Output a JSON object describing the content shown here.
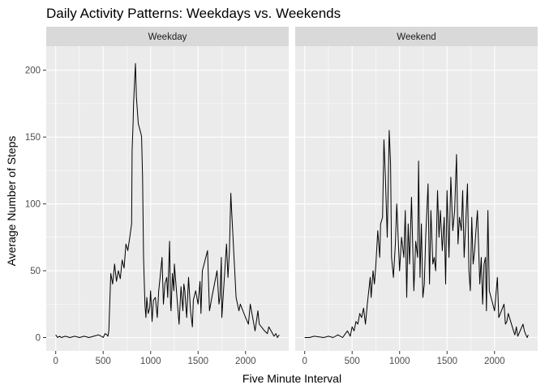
{
  "chart_data": {
    "type": "line",
    "title": "Daily Activity Patterns: Weekdays vs. Weekends",
    "xlabel": "Five Minute Interval",
    "ylabel": "Average Number of Steps",
    "xlim": [
      -100,
      2455
    ],
    "ylim": [
      -10,
      218
    ],
    "x_ticks": [
      0,
      500,
      1000,
      1500,
      2000
    ],
    "x_tick_labels": [
      "0",
      "500",
      "1000",
      "1500",
      "2000"
    ],
    "y_ticks": [
      0,
      50,
      100,
      150,
      200
    ],
    "y_tick_labels": [
      "0",
      "50",
      "100",
      "150",
      "200"
    ],
    "grid": true,
    "facets": [
      {
        "label": "Weekday",
        "series": [
          {
            "x": [
              0,
              20,
              40,
              60,
              100,
              150,
              200,
              250,
              300,
              350,
              400,
              450,
              480,
              500,
              520,
              540,
              550,
              560,
              580,
              600,
              620,
              640,
              660,
              680,
              700,
              720,
              740,
              760,
              780,
              800,
              805,
              815,
              820,
              830,
              840,
              850,
              870,
              900,
              905,
              915,
              925,
              940,
              950,
              960,
              975,
              990,
              1000,
              1015,
              1030,
              1050,
              1070,
              1085,
              1100,
              1120,
              1135,
              1150,
              1170,
              1180,
              1200,
              1210,
              1215,
              1230,
              1245,
              1250,
              1300,
              1320,
              1340,
              1350,
              1360,
              1380,
              1400,
              1420,
              1440,
              1450,
              1475,
              1500,
              1520,
              1530,
              1545,
              1600,
              1620,
              1645,
              1700,
              1720,
              1730,
              1745,
              1750,
              1800,
              1815,
              1830,
              1845,
              1850,
              1900,
              1930,
              1945,
              2000,
              2030,
              2050,
              2100,
              2130,
              2145,
              2200,
              2230,
              2245,
              2300,
              2320,
              2335,
              2355
            ],
            "y": [
              2,
              0,
              1,
              0,
              1,
              0,
              1,
              0,
              1,
              0,
              1,
              2,
              1,
              0,
              3,
              2,
              1,
              5,
              48,
              40,
              55,
              42,
              50,
              44,
              58,
              52,
              70,
              65,
              75,
              85,
              140,
              160,
              175,
              190,
              205,
              180,
              160,
              152,
              150,
              120,
              60,
              25,
              15,
              30,
              18,
              22,
              35,
              12,
              28,
              30,
              15,
              35,
              45,
              60,
              25,
              40,
              45,
              30,
              72,
              25,
              20,
              48,
              35,
              55,
              10,
              38,
              20,
              40,
              35,
              15,
              45,
              20,
              8,
              28,
              35,
              25,
              42,
              18,
              50,
              65,
              20,
              30,
              50,
              25,
              30,
              60,
              15,
              70,
              45,
              65,
              108,
              100,
              30,
              20,
              25,
              15,
              10,
              25,
              5,
              20,
              10,
              5,
              3,
              8,
              1,
              3,
              0,
              2
            ]
          }
        ]
      },
      {
        "label": "Weekend",
        "series": [
          {
            "x": [
              0,
              50,
              100,
              200,
              250,
              300,
              350,
              400,
              430,
              450,
              480,
              500,
              520,
              540,
              560,
              580,
              600,
              620,
              640,
              660,
              690,
              700,
              720,
              735,
              750,
              770,
              790,
              800,
              820,
              835,
              850,
              870,
              890,
              905,
              915,
              935,
              955,
              970,
              1000,
              1020,
              1045,
              1060,
              1075,
              1090,
              1105,
              1125,
              1150,
              1170,
              1190,
              1200,
              1215,
              1230,
              1245,
              1260,
              1275,
              1300,
              1315,
              1330,
              1350,
              1365,
              1380,
              1400,
              1415,
              1430,
              1450,
              1470,
              1485,
              1500,
              1520,
              1540,
              1560,
              1580,
              1600,
              1615,
              1630,
              1650,
              1665,
              1680,
              1700,
              1715,
              1730,
              1745,
              1760,
              1775,
              1790,
              1800,
              1820,
              1845,
              1860,
              1875,
              1890,
              1905,
              1915,
              1930,
              1945,
              2000,
              2030,
              2045,
              2100,
              2115,
              2130,
              2145,
              2200,
              2215,
              2230,
              2245,
              2300,
              2315,
              2330,
              2345,
              2355
            ],
            "y": [
              0,
              0,
              1,
              0,
              1,
              0,
              2,
              0,
              3,
              5,
              1,
              8,
              5,
              12,
              10,
              18,
              15,
              22,
              10,
              25,
              45,
              30,
              50,
              40,
              55,
              80,
              60,
              85,
              90,
              148,
              120,
              75,
              155,
              130,
              60,
              45,
              70,
              100,
              50,
              75,
              60,
              95,
              30,
              85,
              55,
              105,
              35,
              72,
              60,
              132,
              45,
              85,
              30,
              40,
              75,
              115,
              40,
              95,
              55,
              60,
              50,
              110,
              75,
              95,
              65,
              90,
              40,
              110,
              60,
              120,
              80,
              95,
              137,
              70,
              90,
              80,
              110,
              60,
              90,
              115,
              50,
              35,
              90,
              55,
              65,
              75,
              95,
              40,
              60,
              25,
              55,
              60,
              20,
              95,
              35,
              20,
              45,
              15,
              25,
              10,
              12,
              18,
              5,
              2,
              8,
              1,
              10,
              5,
              2,
              0,
              2
            ]
          }
        ]
      }
    ]
  }
}
